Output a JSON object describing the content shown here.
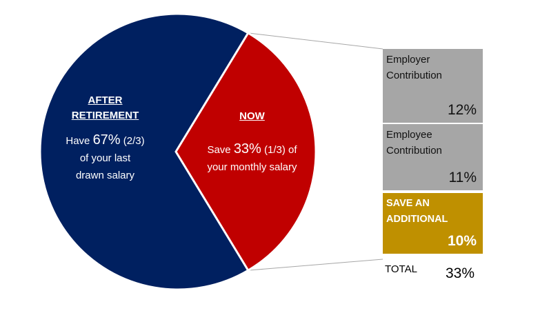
{
  "chart_data": {
    "type": "pie",
    "slices": [
      {
        "key": "after",
        "percent": 67,
        "color": "#002060",
        "heading_lines": [
          "AFTER",
          "RETIREMENT"
        ],
        "text": {
          "line1_pre": "Have ",
          "line1_pct": "67%",
          "line1_post": " (2/3)",
          "line2": "of your last",
          "line3": "drawn salary"
        }
      },
      {
        "key": "now",
        "percent": 33,
        "color": "#C00000",
        "heading_lines": [
          "NOW"
        ],
        "text": {
          "line1_pre": "Save ",
          "line1_pct": "33%",
          "line1_post": " (1/3) of",
          "line2": "your monthly salary"
        }
      }
    ],
    "breakdown": {
      "items": [
        {
          "key": "employer",
          "label_lines": [
            "Employer",
            "Contribution"
          ],
          "value": 12,
          "value_text": "12%",
          "color": "#A6A6A6"
        },
        {
          "key": "employee",
          "label_lines": [
            "Employee",
            "Contribution"
          ],
          "value": 11,
          "value_text": "11%",
          "color": "#A6A6A6"
        },
        {
          "key": "additional",
          "label_lines": [
            "SAVE AN",
            "ADDITIONAL"
          ],
          "value": 10,
          "value_text": "10%",
          "color": "#BF9000"
        }
      ],
      "total_label": "TOTAL",
      "total_value": 33,
      "total_text": "33%"
    }
  }
}
